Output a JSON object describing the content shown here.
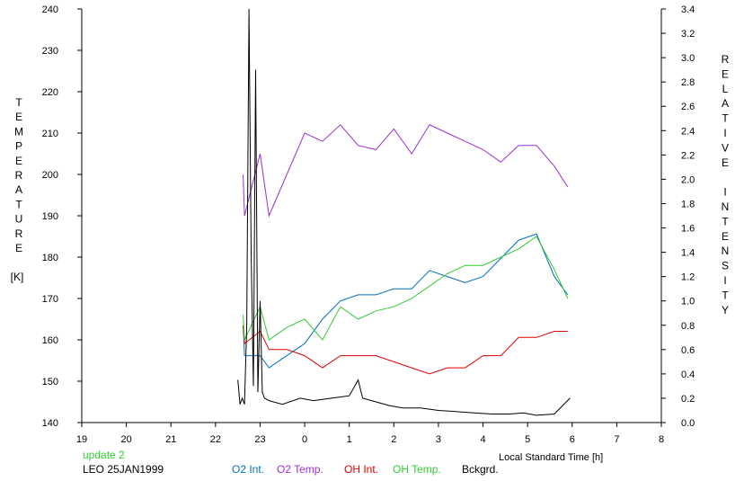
{
  "chart_data": {
    "type": "line",
    "x_label": "Local Standard Time [h]",
    "left_axis": {
      "label": "TEMPERATURE",
      "unit": "[K]",
      "range": [
        140,
        240
      ],
      "ticks": [
        "140",
        "150",
        "160",
        "170",
        "180",
        "190",
        "200",
        "210",
        "220",
        "230",
        "240"
      ]
    },
    "right_axis": {
      "label": "RELATIVE INTENSITY",
      "range": [
        0.0,
        3.4
      ],
      "ticks": [
        "0.0",
        "0.2",
        "0.4",
        "0.6",
        "0.8",
        "1.0",
        "1.2",
        "1.4",
        "1.6",
        "1.8",
        "2.0",
        "2.2",
        "2.4",
        "2.6",
        "2.8",
        "3.0",
        "3.2",
        "3.4"
      ]
    },
    "x_range": [
      19,
      32
    ],
    "x_ticks": [
      "19",
      "20",
      "21",
      "22",
      "23",
      "0",
      "1",
      "2",
      "3",
      "4",
      "5",
      "6",
      "7",
      "8"
    ],
    "grid": false,
    "annotations": {
      "update": "update 2",
      "site_date": "LEO 25JAN1999"
    },
    "series": [
      {
        "name": "O2 Int.",
        "axis": "right",
        "color": "#0070c0",
        "x": [
          22.62,
          22.65,
          23.0,
          23.2,
          23.6,
          24.0,
          24.4,
          24.8,
          25.2,
          25.6,
          26.0,
          26.4,
          26.8,
          27.2,
          27.6,
          28.0,
          28.4,
          28.8,
          29.2,
          29.6,
          29.9
        ],
        "y": [
          0.8,
          0.55,
          0.55,
          0.45,
          0.55,
          0.65,
          0.85,
          1.0,
          1.05,
          1.05,
          1.1,
          1.1,
          1.25,
          1.2,
          1.15,
          1.2,
          1.35,
          1.5,
          1.55,
          1.2,
          1.05
        ]
      },
      {
        "name": "O2 Temp.",
        "axis": "left",
        "color": "#9932cc",
        "x": [
          22.62,
          22.65,
          23.0,
          23.2,
          23.6,
          24.0,
          24.4,
          24.8,
          25.2,
          25.6,
          26.0,
          26.4,
          26.8,
          27.2,
          27.6,
          28.0,
          28.4,
          28.8,
          29.2,
          29.6,
          29.9
        ],
        "y": [
          200,
          190,
          205,
          190,
          200,
          210,
          208,
          212,
          207,
          206,
          211,
          205,
          212,
          210,
          208,
          206,
          203,
          207,
          207,
          202,
          197
        ]
      },
      {
        "name": "OH Int.",
        "axis": "right",
        "color": "#e00000",
        "x": [
          22.62,
          22.65,
          23.0,
          23.2,
          23.6,
          24.0,
          24.4,
          24.8,
          25.2,
          25.6,
          26.0,
          26.4,
          26.8,
          27.2,
          27.6,
          28.0,
          28.4,
          28.8,
          29.2,
          29.6,
          29.9
        ],
        "y": [
          0.8,
          0.65,
          0.75,
          0.6,
          0.6,
          0.55,
          0.45,
          0.55,
          0.55,
          0.55,
          0.5,
          0.45,
          0.4,
          0.45,
          0.45,
          0.55,
          0.55,
          0.7,
          0.7,
          0.75,
          0.75
        ]
      },
      {
        "name": "OH Temp.",
        "axis": "left",
        "color": "#33cc33",
        "x": [
          22.62,
          22.65,
          23.0,
          23.2,
          23.6,
          24.0,
          24.4,
          24.8,
          25.2,
          25.6,
          26.0,
          26.4,
          26.8,
          27.2,
          27.6,
          28.0,
          28.4,
          28.8,
          29.2,
          29.6,
          29.9
        ],
        "y": [
          166,
          160,
          168,
          160,
          163,
          165,
          160,
          168,
          165,
          167,
          168,
          170,
          173,
          176,
          178,
          178,
          180,
          182,
          185,
          177,
          170
        ]
      },
      {
        "name": "Bckgrd.",
        "axis": "right",
        "color": "#000000",
        "x": [
          22.5,
          22.55,
          22.6,
          22.65,
          22.7,
          22.75,
          22.8,
          22.85,
          22.9,
          22.95,
          23.0,
          23.05,
          23.1,
          23.2,
          23.5,
          23.9,
          24.2,
          24.6,
          25.0,
          25.2,
          25.3,
          25.5,
          25.9,
          26.2,
          26.6,
          27.0,
          27.4,
          27.8,
          28.2,
          28.6,
          28.9,
          29.2,
          29.6,
          29.95
        ],
        "y": [
          0.35,
          0.15,
          0.2,
          0.15,
          0.8,
          3.4,
          1.4,
          0.3,
          2.9,
          0.25,
          1.0,
          0.25,
          0.2,
          0.18,
          0.15,
          0.2,
          0.18,
          0.2,
          0.22,
          0.35,
          0.2,
          0.18,
          0.14,
          0.12,
          0.12,
          0.1,
          0.09,
          0.08,
          0.07,
          0.07,
          0.08,
          0.06,
          0.07,
          0.2
        ]
      }
    ]
  }
}
